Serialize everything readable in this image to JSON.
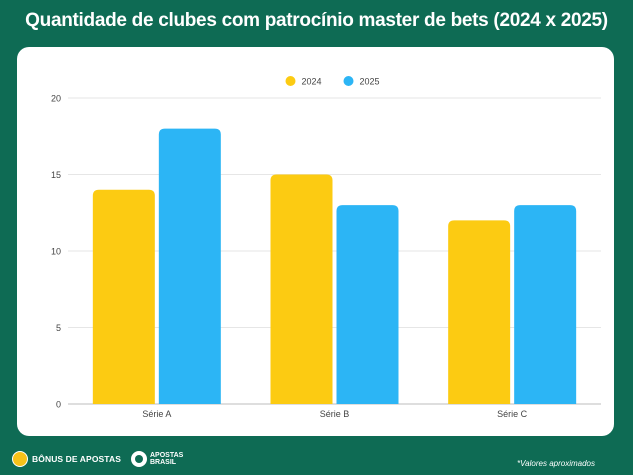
{
  "chart_data": {
    "type": "bar",
    "title": "Quantidade de clubes com patrocínio master de bets (2024 x 2025)",
    "categories": [
      "Série A",
      "Série B",
      "Série C"
    ],
    "series": [
      {
        "name": "2024",
        "values": [
          14,
          15,
          12
        ],
        "color": "#fccb12"
      },
      {
        "name": "2025",
        "values": [
          18,
          13,
          13
        ],
        "color": "#2cb5f5"
      }
    ],
    "ylim": [
      0,
      20
    ],
    "yticks": [
      0,
      5,
      10,
      15,
      20
    ],
    "grid": true,
    "legend": "top-center"
  },
  "footer": {
    "brand1": "BÔNUS DE APOSTAS",
    "brand2_line1": "APOSTAS",
    "brand2_line2": "BRASIL",
    "note": "*Valores aproximados"
  }
}
